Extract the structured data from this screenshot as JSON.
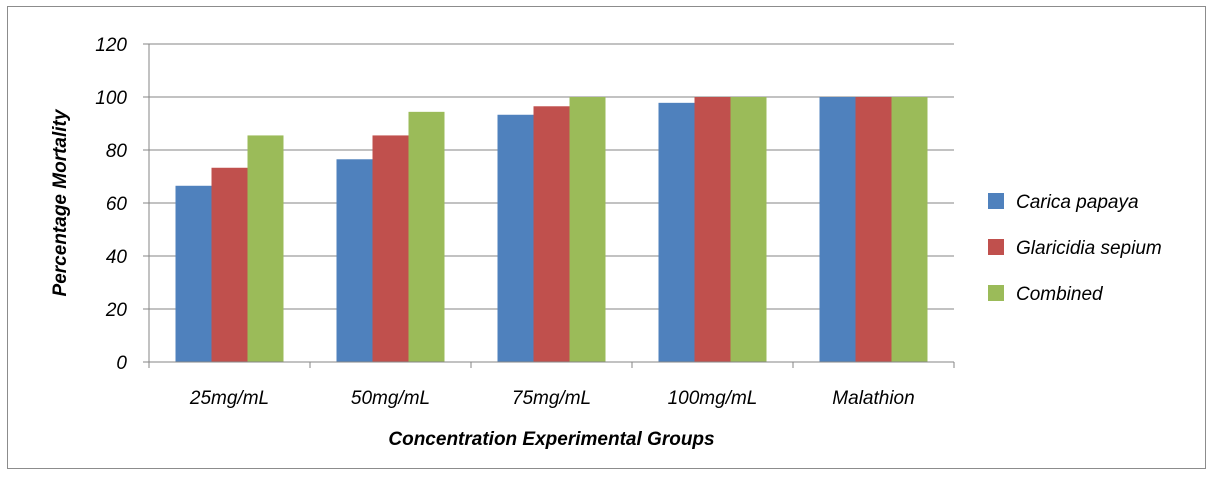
{
  "chart_data": {
    "type": "bar",
    "title": "",
    "xlabel": "Concentration Experimental Groups",
    "ylabel": "Percentage Mortality",
    "categories": [
      "25mg/mL",
      "50mg/mL",
      "75mg/mL",
      "100mg/mL",
      "Malathion"
    ],
    "series": [
      {
        "name": "Carica papaya",
        "color": "#4F81BD",
        "values": [
          66.5,
          76.5,
          93.3,
          97.8,
          100
        ]
      },
      {
        "name": "Glaricidia sepium",
        "color": "#C0504D",
        "values": [
          73.3,
          85.5,
          96.5,
          100,
          100
        ]
      },
      {
        "name": "Combined",
        "color": "#9BBB59",
        "values": [
          85.5,
          94.4,
          100,
          100,
          100
        ]
      }
    ],
    "ylim": [
      0,
      120
    ],
    "yticks": [
      "0",
      "20",
      "40",
      "60",
      "80",
      "100",
      "120"
    ],
    "grid": true,
    "legend_position": "right"
  }
}
